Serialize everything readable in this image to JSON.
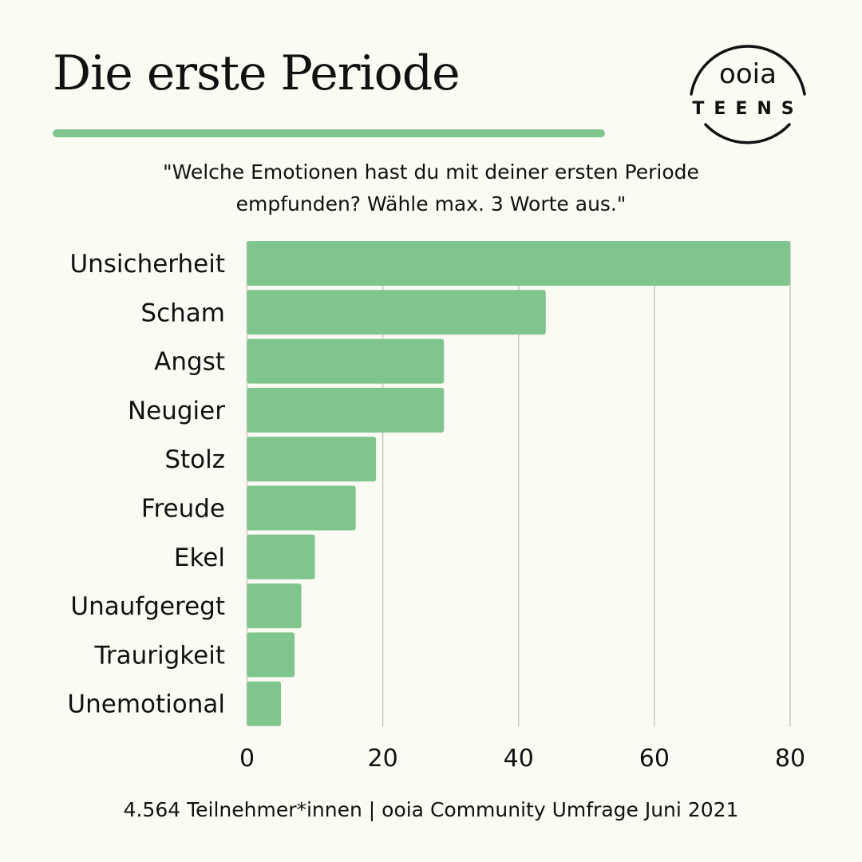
{
  "title": "Die erste Periode",
  "subtitle_line1": "\"Welche Emotionen hast du mit deiner ersten Periode",
  "subtitle_line2": "empfunden? Wähle max. 3 Worte aus.\"",
  "logo": {
    "top": "ooia",
    "bottom": "TEENS"
  },
  "footer": "4.564 Teilnehmer*innen | ooia Community Umfrage Juni 2021",
  "colors": {
    "bar": "#80c48e",
    "background": "#fafbf2",
    "grid": "#c8c8c0"
  },
  "chart_data": {
    "type": "bar",
    "orientation": "horizontal",
    "categories": [
      "Unsicherheit",
      "Scham",
      "Angst",
      "Neugier",
      "Stolz",
      "Freude",
      "Ekel",
      "Unaufgeregt",
      "Traurigkeit",
      "Unemotional"
    ],
    "values": [
      80,
      44,
      29,
      29,
      19,
      16,
      10,
      8,
      7,
      5
    ],
    "xlim": [
      0,
      80
    ],
    "xticks": [
      "0",
      "20",
      "40",
      "60",
      "80"
    ],
    "xtick_values": [
      0,
      20,
      40,
      60,
      80
    ],
    "grid": "vertical",
    "xlabel": "",
    "ylabel": ""
  }
}
